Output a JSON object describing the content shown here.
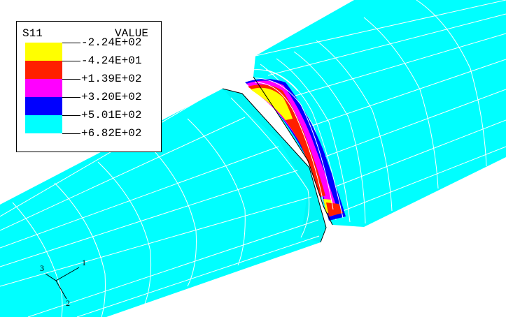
{
  "legend": {
    "variable": "S11",
    "header": "VALUE",
    "bands": [
      {
        "value": "-2.24E+02",
        "color": "#ffff00"
      },
      {
        "value": "-4.24E+01",
        "color": "#ff2000"
      },
      {
        "value": "+1.39E+02",
        "color": "#ff00ff"
      },
      {
        "value": "+3.20E+02",
        "color": "#0000ff"
      },
      {
        "value": "+5.01E+02",
        "color": "#00ffff"
      },
      {
        "value": "+6.82E+02",
        "color": "#00ffff"
      }
    ]
  },
  "triad": {
    "axis1": "1",
    "axis2": "2",
    "axis3": "3"
  },
  "colors": {
    "base": "#00ffff",
    "mesh": "#ffffff",
    "outline": "#000000",
    "level1": "#ffff00",
    "level2": "#ff2000",
    "level3": "#ff00ff",
    "level4": "#0000ff"
  }
}
